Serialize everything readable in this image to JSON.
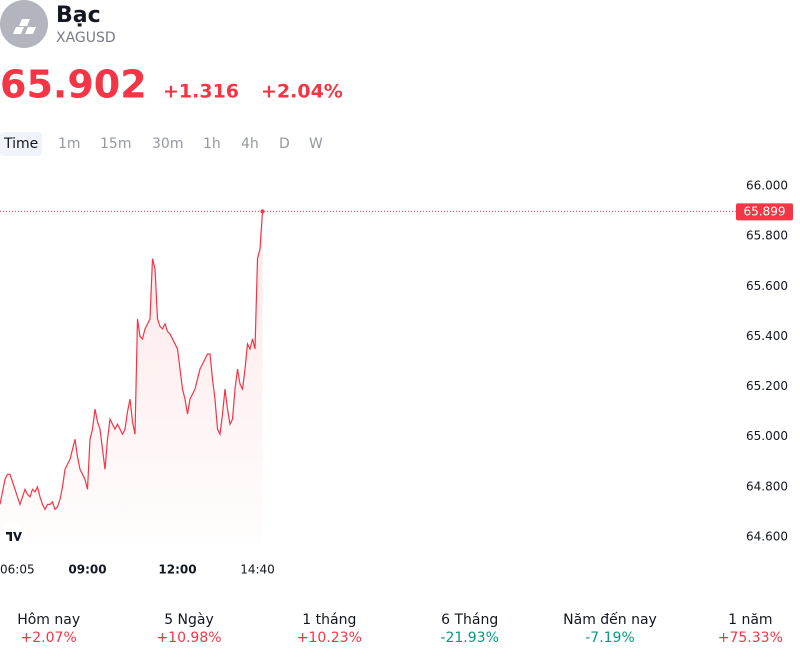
{
  "header": {
    "title": "Bạc",
    "symbol": "XAGUSD"
  },
  "quote": {
    "price": "65.902",
    "change": "+1.316",
    "change_percent": "+2.04%"
  },
  "timeframes": [
    "Time",
    "1m",
    "15m",
    "30m",
    "1h",
    "4h",
    "D",
    "W"
  ],
  "chart_data": {
    "type": "line",
    "color": "#f23645",
    "categories": [
      "06:05",
      null,
      null,
      null,
      null,
      null,
      null,
      null,
      null,
      null,
      null,
      null,
      null,
      null,
      null,
      null,
      null,
      null,
      null,
      null,
      null,
      null,
      null,
      null,
      null,
      null,
      null,
      null,
      null,
      null,
      null,
      null,
      null,
      null,
      null,
      "09:00",
      null,
      null,
      null,
      null,
      null,
      null,
      null,
      null,
      null,
      null,
      null,
      null,
      null,
      null,
      null,
      null,
      null,
      null,
      null,
      null,
      null,
      null,
      null,
      null,
      null,
      null,
      null,
      null,
      null,
      null,
      null,
      null,
      null,
      null,
      null,
      "12:00",
      null,
      null,
      null,
      null,
      null,
      null,
      null,
      null,
      null,
      null,
      null,
      null,
      null,
      null,
      null,
      null,
      null,
      null,
      null,
      null,
      null,
      null,
      null,
      null,
      null,
      null,
      null,
      null,
      null,
      null,
      null,
      "14:40",
      null,
      null
    ],
    "values": [
      64.73,
      64.78,
      64.83,
      64.85,
      64.85,
      64.82,
      64.79,
      64.76,
      64.73,
      64.76,
      64.79,
      64.77,
      64.76,
      64.79,
      64.78,
      64.8,
      64.76,
      64.73,
      64.71,
      64.73,
      64.73,
      64.74,
      64.71,
      64.72,
      64.75,
      64.8,
      64.87,
      64.89,
      64.91,
      64.95,
      64.99,
      64.92,
      64.87,
      64.85,
      64.83,
      64.79,
      64.99,
      65.03,
      65.11,
      65.06,
      65.03,
      64.95,
      64.87,
      64.99,
      65.07,
      65.05,
      65.03,
      65.05,
      65.03,
      65.01,
      65.03,
      65.1,
      65.15,
      65.06,
      65.01,
      65.47,
      65.4,
      65.39,
      65.43,
      65.45,
      65.47,
      65.71,
      65.67,
      65.47,
      65.44,
      65.43,
      65.45,
      65.42,
      65.41,
      65.39,
      65.37,
      65.35,
      65.27,
      65.19,
      65.15,
      65.09,
      65.15,
      65.17,
      65.19,
      65.23,
      65.27,
      65.29,
      65.31,
      65.33,
      65.33,
      65.23,
      65.15,
      65.03,
      65.01,
      65.09,
      65.19,
      65.11,
      65.05,
      65.07,
      65.19,
      65.27,
      65.21,
      65.19,
      65.27,
      65.37,
      65.35,
      65.39,
      65.35,
      65.71,
      65.75,
      65.899
    ],
    "ylim": [
      64.6,
      66.0
    ],
    "yticks": [
      {
        "value": 64.6,
        "label": "64.600"
      },
      {
        "value": 64.8,
        "label": "64.800"
      },
      {
        "value": 65.0,
        "label": "65.000"
      },
      {
        "value": 65.2,
        "label": "65.200"
      },
      {
        "value": 65.4,
        "label": "65.400"
      },
      {
        "value": 65.6,
        "label": "65.600"
      },
      {
        "value": 65.8,
        "label": "65.800"
      },
      {
        "value": 66.0,
        "label": "66.000"
      }
    ]
  },
  "performance": [
    {
      "label": "Hôm nay",
      "value": "+2.07%"
    },
    {
      "label": "5 Ngày",
      "value": "+10.98%"
    },
    {
      "label": "1 tháng",
      "value": "+10.23%"
    },
    {
      "label": "6 Tháng",
      "value": "-21.93%"
    },
    {
      "label": "Năm đến nay",
      "value": "-7.19%"
    },
    {
      "label": "1 năm",
      "value": "+75.33%"
    }
  ]
}
